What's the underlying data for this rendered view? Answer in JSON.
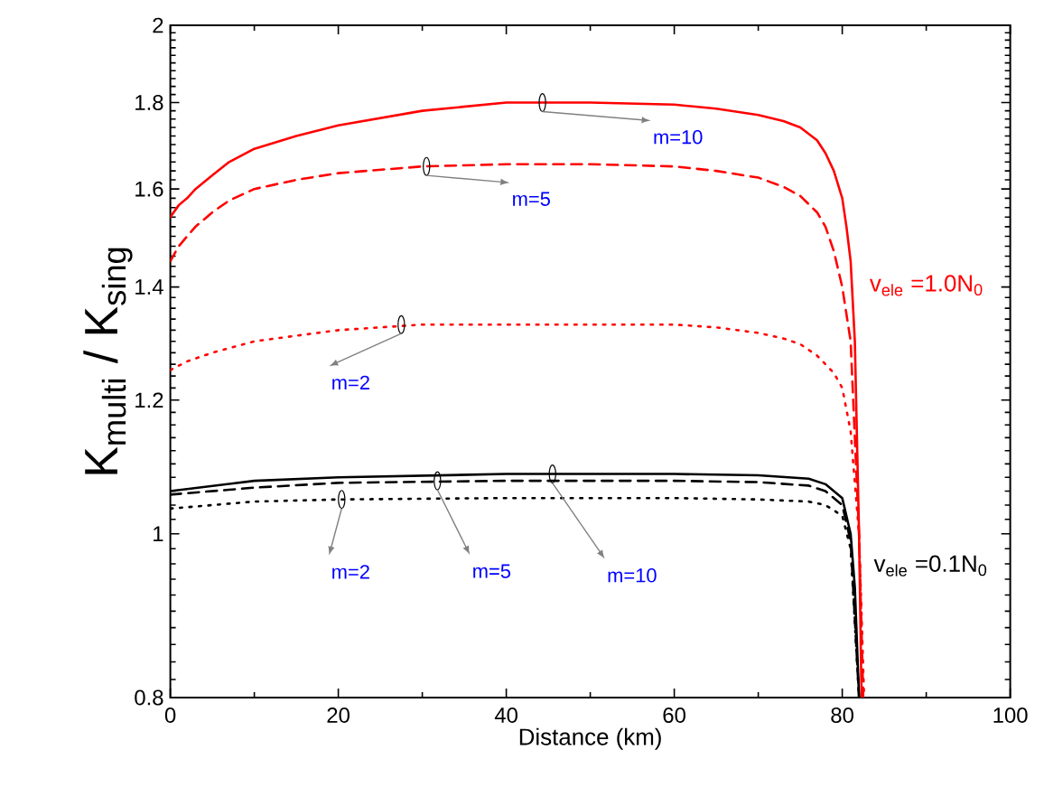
{
  "chart_data": {
    "type": "line",
    "xlabel": "Distance (km)",
    "ylabel": "K$_{multi}$ / K$_{sing}$",
    "log": "y",
    "xlim": [
      0,
      100
    ],
    "xticks": [
      0,
      20,
      40,
      60,
      80,
      100
    ],
    "ylim": [
      0.8,
      2
    ],
    "yticks": [
      0.8,
      1,
      1.2,
      1.4,
      1.6,
      1.8,
      2
    ],
    "marker": "none",
    "series": [
      {
        "color": "#ff0000",
        "line_style": "solid",
        "x": [
          0,
          1,
          2,
          3,
          5,
          7,
          10,
          15,
          20,
          30,
          40,
          50,
          60,
          65,
          70,
          73,
          75,
          77,
          78,
          79,
          80,
          80.5,
          81,
          81.5,
          82,
          82.3
        ],
        "values": [
          1.54,
          1.565,
          1.58,
          1.6,
          1.63,
          1.66,
          1.69,
          1.72,
          1.745,
          1.78,
          1.8,
          1.8,
          1.795,
          1.785,
          1.77,
          1.755,
          1.74,
          1.71,
          1.68,
          1.64,
          1.58,
          1.52,
          1.45,
          1.3,
          1.0,
          0.8
        ]
      },
      {
        "color": "#ff0000",
        "line_style": "dashed",
        "x": [
          0,
          1,
          2,
          3,
          5,
          7,
          10,
          15,
          20,
          30,
          40,
          50,
          60,
          65,
          70,
          73,
          75,
          77,
          78,
          79,
          80,
          81,
          82,
          82.5
        ],
        "values": [
          1.45,
          1.48,
          1.5,
          1.52,
          1.55,
          1.575,
          1.6,
          1.62,
          1.635,
          1.65,
          1.655,
          1.655,
          1.65,
          1.64,
          1.625,
          1.605,
          1.585,
          1.55,
          1.52,
          1.47,
          1.4,
          1.3,
          1.0,
          0.8
        ]
      },
      {
        "color": "#ff0000",
        "line_style": "dotted",
        "x": [
          0,
          2,
          5,
          10,
          15,
          20,
          30,
          50,
          60,
          65,
          70,
          73,
          75,
          77,
          78,
          79,
          80,
          81,
          82,
          82.6
        ],
        "values": [
          1.25,
          1.265,
          1.28,
          1.3,
          1.31,
          1.32,
          1.33,
          1.33,
          1.33,
          1.325,
          1.315,
          1.305,
          1.295,
          1.275,
          1.26,
          1.245,
          1.22,
          1.15,
          1.0,
          0.8
        ]
      },
      {
        "color": "#000000",
        "line_style": "solid",
        "x": [
          0,
          10,
          20,
          40,
          60,
          70,
          76,
          78,
          80,
          81,
          81.5,
          82
        ],
        "values": [
          1.06,
          1.075,
          1.08,
          1.085,
          1.085,
          1.083,
          1.078,
          1.07,
          1.05,
          1.0,
          0.93,
          0.8
        ]
      },
      {
        "color": "#000000",
        "line_style": "dashed",
        "x": [
          0,
          10,
          20,
          40,
          60,
          70,
          76,
          78,
          80,
          81,
          82
        ],
        "values": [
          1.055,
          1.065,
          1.072,
          1.075,
          1.075,
          1.073,
          1.068,
          1.06,
          1.04,
          0.99,
          0.8
        ]
      },
      {
        "color": "#000000",
        "line_style": "dotted",
        "x": [
          0,
          10,
          20,
          40,
          60,
          70,
          76,
          78,
          80,
          81,
          82
        ],
        "values": [
          1.035,
          1.045,
          1.048,
          1.05,
          1.05,
          1.048,
          1.045,
          1.04,
          1.025,
          0.98,
          0.8
        ]
      }
    ],
    "annotations": [
      {
        "text": "m=10",
        "x": 44.3,
        "y": 1.8
      },
      {
        "text": "m=5",
        "x": 30.5,
        "y": 1.65
      },
      {
        "text": "m=2",
        "x": 27.5,
        "y": 1.33
      },
      {
        "text": "m=2",
        "x": 20.4,
        "y": 1.048
      },
      {
        "text": "m=5",
        "x": 31.8,
        "y": 1.075
      },
      {
        "text": "m=10",
        "x": 45.5,
        "y": 1.085
      },
      "v$_{ele}$ =1.0N$_{0}$",
      "v$_{ele}$ =0.1N$_{0}$"
    ]
  }
}
